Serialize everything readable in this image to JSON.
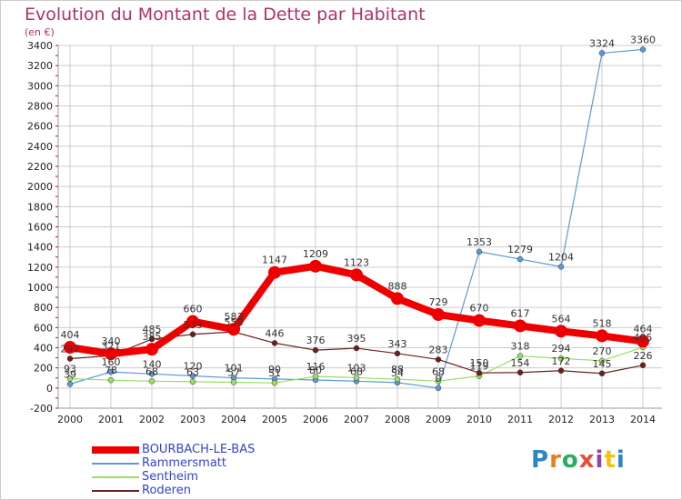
{
  "title": "Evolution du Montant de la Dette par Habitant",
  "subtitle": "(en €)",
  "brand": {
    "name": "Proxiti",
    "letter_colors": [
      "#2e86c1",
      "#e67e22",
      "#27ae60",
      "#e74c3c",
      "#8e44ad",
      "#f1c40f",
      "#2e86c1"
    ]
  },
  "colors": {
    "axis_tick": "#cc0000",
    "grid": "#cccccc"
  },
  "chart_data": {
    "type": "line",
    "title": "Evolution du Montant de la Dette par Habitant",
    "subtitle": "(en €)",
    "xlabel": "",
    "ylabel": "",
    "x": [
      2000,
      2001,
      2002,
      2003,
      2004,
      2005,
      2006,
      2007,
      2008,
      2009,
      2010,
      2011,
      2012,
      2013,
      2014
    ],
    "ylim": [
      -200,
      3400
    ],
    "yticks": [
      -200,
      0,
      200,
      400,
      600,
      800,
      1000,
      1200,
      1400,
      1600,
      1800,
      2000,
      2200,
      2400,
      2600,
      2800,
      3000,
      3200,
      3400
    ],
    "grid": true,
    "legend_position": "bottom-left",
    "series": [
      {
        "name": "BOURBACH-LE-BAS",
        "color": "#ee0000",
        "width": 8,
        "marker": 7,
        "values": [
          404,
          340,
          385,
          660,
          583,
          1147,
          1209,
          1123,
          888,
          729,
          670,
          617,
          564,
          518,
          464
        ]
      },
      {
        "name": "Rammersmatt",
        "color": "#5b9bd5",
        "width": 1.2,
        "marker": 3,
        "values": [
          39,
          160,
          140,
          120,
          101,
          90,
          80,
          68,
          54,
          0,
          1353,
          1279,
          1204,
          3324,
          3360
        ]
      },
      {
        "name": "Sentheim",
        "color": "#99dd66",
        "width": 1.2,
        "marker": 3,
        "values": [
          93,
          78,
          68,
          63,
          57,
          51,
          116,
          103,
          88,
          68,
          119,
          318,
          294,
          270,
          405
        ]
      },
      {
        "name": "Roderen",
        "color": "#6b2020",
        "width": 1.2,
        "marker": 3,
        "values": [
          292,
          321,
          485,
          533,
          558,
          446,
          376,
          395,
          343,
          283,
          150,
          154,
          172,
          145,
          226
        ]
      }
    ]
  }
}
